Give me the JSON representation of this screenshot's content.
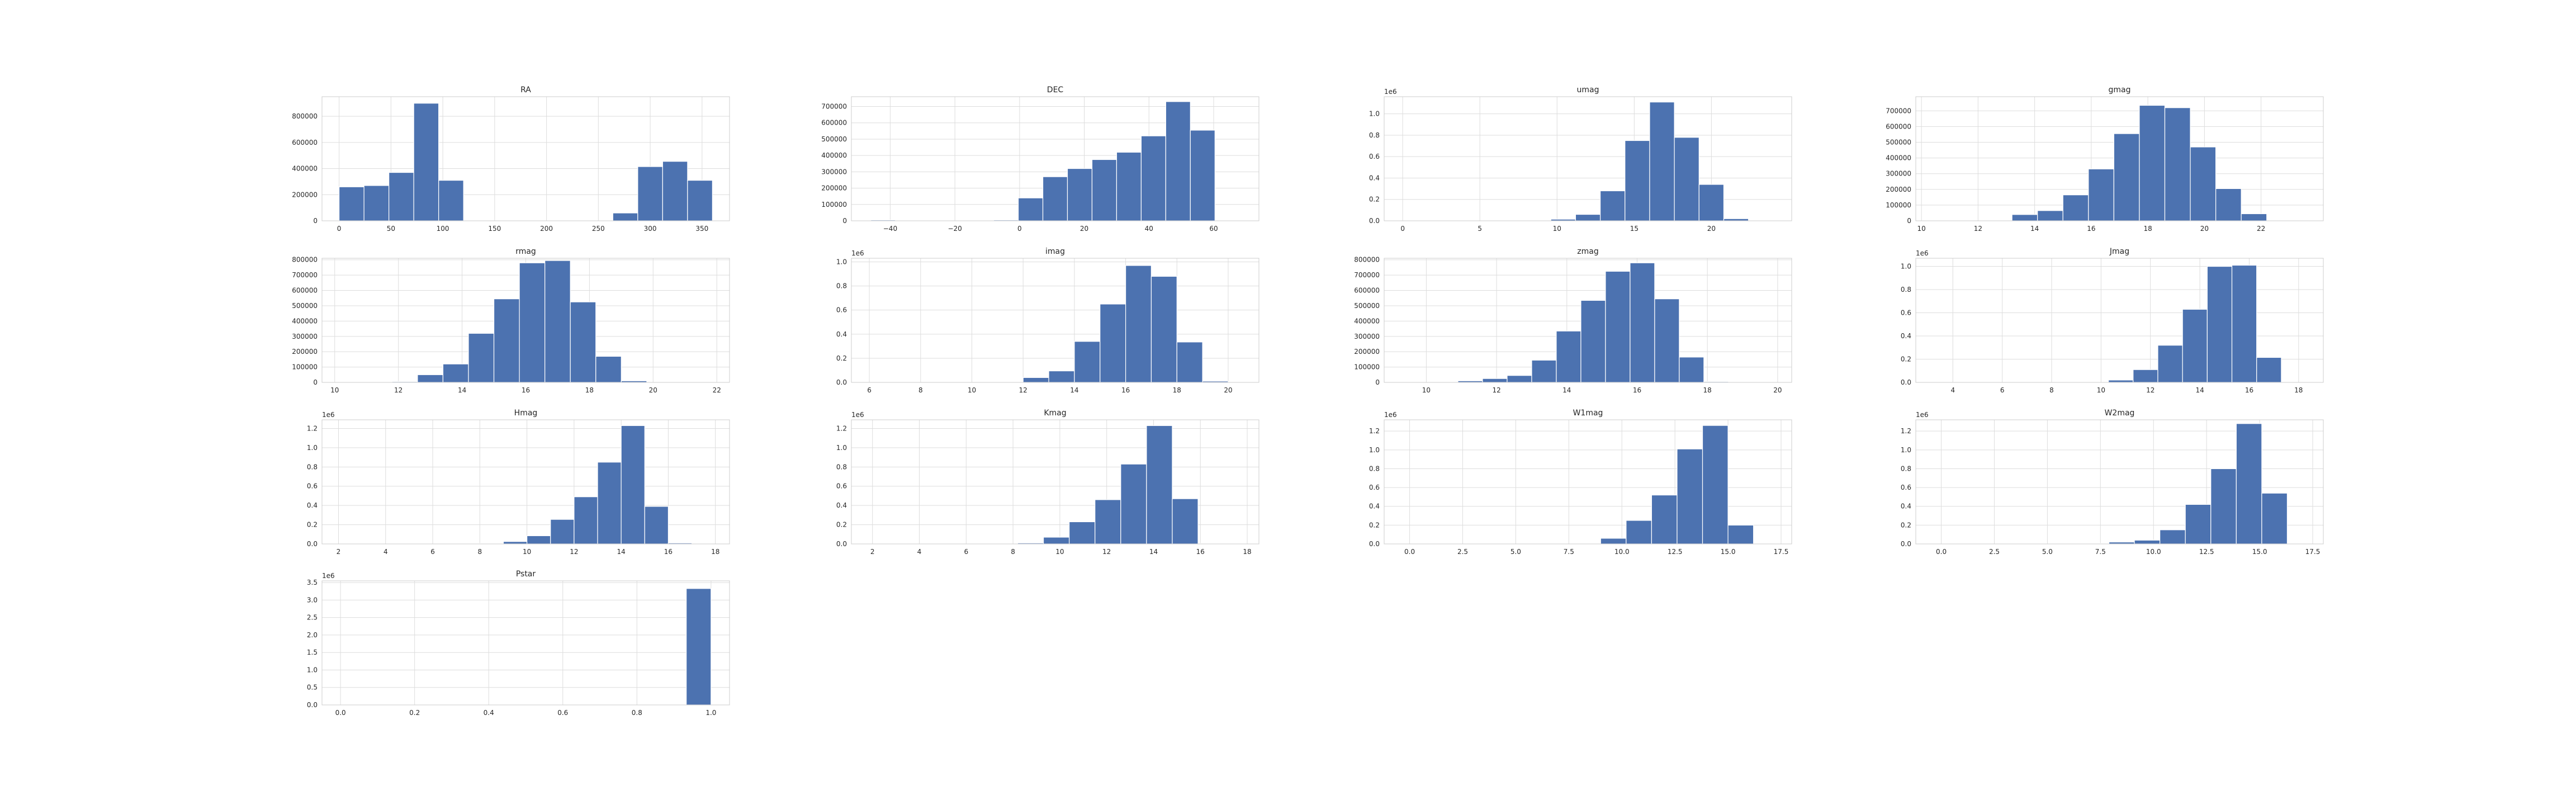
{
  "figure": {
    "background": "#ffffff"
  },
  "style": {
    "bar_color": "#4c72b0",
    "bar_edge": "#ffffff",
    "grid_color": "#dddddd",
    "axes_face": "#ffffff",
    "spine_color": "#cccccc"
  },
  "chart_data": [
    {
      "type": "bar",
      "title": "RA",
      "xlim": [
        -16.5,
        376.5
      ],
      "ylim": [
        0,
        950000
      ],
      "xticks": [
        0,
        50,
        100,
        150,
        200,
        250,
        300,
        350
      ],
      "xtick_labels": [
        "0",
        "50",
        "100",
        "150",
        "200",
        "250",
        "300",
        "350"
      ],
      "yticks": [
        0,
        200000,
        400000,
        600000,
        800000
      ],
      "ytick_labels": [
        "0",
        "200000",
        "400000",
        "600000",
        "800000"
      ],
      "offset_label": "",
      "bin_edges": [
        0,
        24,
        48,
        72,
        96,
        120,
        144,
        168,
        192,
        216,
        240,
        264,
        288,
        312,
        336,
        360
      ],
      "values": [
        260000,
        270000,
        370000,
        900000,
        310000,
        0,
        0,
        0,
        0,
        0,
        0,
        60000,
        415000,
        455000,
        310000
      ]
    },
    {
      "type": "bar",
      "title": "DEC",
      "xlim": [
        -52,
        74
      ],
      "ylim": [
        0,
        760000
      ],
      "xticks": [
        -40,
        -20,
        0,
        20,
        40,
        60
      ],
      "xtick_labels": [
        "−40",
        "−20",
        "0",
        "20",
        "40",
        "60"
      ],
      "yticks": [
        0,
        100000,
        200000,
        300000,
        400000,
        500000,
        600000,
        700000
      ],
      "ytick_labels": [
        "0",
        "100000",
        "200000",
        "300000",
        "400000",
        "500000",
        "600000",
        "700000"
      ],
      "offset_label": "",
      "bin_edges": [
        -46,
        -38.4,
        -30.8,
        -23.2,
        -15.6,
        -8,
        -0.4,
        7.2,
        14.8,
        22.4,
        30,
        37.6,
        45.2,
        52.8,
        60.4,
        68
      ],
      "values": [
        5000,
        0,
        0,
        0,
        0,
        5000,
        140000,
        270000,
        320000,
        375000,
        420000,
        520000,
        730000,
        555000,
        0
      ]
    },
    {
      "type": "bar",
      "title": "umag",
      "xlim": [
        -1.2,
        25.2
      ],
      "ylim": [
        0,
        1.16
      ],
      "xticks": [
        0,
        5,
        10,
        15,
        20
      ],
      "xtick_labels": [
        "0",
        "5",
        "10",
        "15",
        "20"
      ],
      "yticks": [
        0,
        0.2,
        0.4,
        0.6,
        0.8,
        1.0
      ],
      "ytick_labels": [
        "0.0",
        "0.2",
        "0.4",
        "0.6",
        "0.8",
        "1.0"
      ],
      "offset_label": "1e6",
      "bin_edges": [
        0,
        1.6,
        3.2,
        4.8,
        6.4,
        8,
        9.6,
        11.2,
        12.8,
        14.4,
        16,
        17.6,
        19.2,
        20.8,
        22.4,
        24
      ],
      "values": [
        0,
        0,
        0,
        0,
        0,
        0,
        0.015,
        0.06,
        0.28,
        0.75,
        1.11,
        0.78,
        0.34,
        0.02,
        0
      ]
    },
    {
      "type": "bar",
      "title": "gmag",
      "xlim": [
        9.8,
        24.2
      ],
      "ylim": [
        0,
        790000
      ],
      "xticks": [
        10,
        12,
        14,
        16,
        18,
        20,
        22
      ],
      "xtick_labels": [
        "10",
        "12",
        "14",
        "16",
        "18",
        "20",
        "22"
      ],
      "yticks": [
        0,
        100000,
        200000,
        300000,
        400000,
        500000,
        600000,
        700000
      ],
      "ytick_labels": [
        "0",
        "100000",
        "200000",
        "300000",
        "400000",
        "500000",
        "600000",
        "700000"
      ],
      "offset_label": "",
      "bin_edges": [
        10.5,
        11.4,
        12.3,
        13.2,
        14.1,
        15,
        15.9,
        16.8,
        17.7,
        18.6,
        19.5,
        20.4,
        21.3,
        22.2,
        23.1,
        24
      ],
      "values": [
        0,
        0,
        0,
        40000,
        65000,
        165000,
        330000,
        555000,
        735000,
        720000,
        470000,
        205000,
        45000,
        0,
        0
      ]
    },
    {
      "type": "bar",
      "title": "rmag",
      "xlim": [
        9.6,
        22.4
      ],
      "ylim": [
        0,
        810000
      ],
      "xticks": [
        10,
        12,
        14,
        16,
        18,
        20,
        22
      ],
      "xtick_labels": [
        "10",
        "12",
        "14",
        "16",
        "18",
        "20",
        "22"
      ],
      "yticks": [
        0,
        100000,
        200000,
        300000,
        400000,
        500000,
        600000,
        700000,
        800000
      ],
      "ytick_labels": [
        "0",
        "100000",
        "200000",
        "300000",
        "400000",
        "500000",
        "600000",
        "700000",
        "800000"
      ],
      "offset_label": "",
      "bin_edges": [
        10.2,
        11.0,
        11.8,
        12.6,
        13.4,
        14.2,
        15.0,
        15.8,
        16.6,
        17.4,
        18.2,
        19.0,
        19.8,
        20.6,
        21.4,
        22.2
      ],
      "values": [
        0,
        0,
        5000,
        50000,
        120000,
        320000,
        545000,
        780000,
        795000,
        525000,
        170000,
        10000,
        0,
        0,
        0
      ]
    },
    {
      "type": "bar",
      "title": "imag",
      "xlim": [
        5.3,
        21.2
      ],
      "ylim": [
        0,
        1.03
      ],
      "xticks": [
        6,
        8,
        10,
        12,
        14,
        16,
        18,
        20
      ],
      "xtick_labels": [
        "6",
        "8",
        "10",
        "12",
        "14",
        "16",
        "18",
        "20"
      ],
      "yticks": [
        0,
        0.2,
        0.4,
        0.6,
        0.8,
        1.0
      ],
      "ytick_labels": [
        "0.0",
        "0.2",
        "0.4",
        "0.6",
        "0.8",
        "1.0"
      ],
      "offset_label": "1e6",
      "bin_edges": [
        6.0,
        7.0,
        8.0,
        9.0,
        10.0,
        11.0,
        12.0,
        13.0,
        14.0,
        15.0,
        16.0,
        17.0,
        18.0,
        19.0,
        20.0,
        21.0
      ],
      "values": [
        0,
        0,
        0,
        0,
        0,
        0.005,
        0.04,
        0.095,
        0.34,
        0.65,
        0.97,
        0.88,
        0.335,
        0.01,
        0
      ]
    },
    {
      "type": "bar",
      "title": "zmag",
      "xlim": [
        8.8,
        20.4
      ],
      "ylim": [
        0,
        810000
      ],
      "xticks": [
        10,
        12,
        14,
        16,
        18,
        20
      ],
      "xtick_labels": [
        "10",
        "12",
        "14",
        "16",
        "18",
        "20"
      ],
      "yticks": [
        0,
        100000,
        200000,
        300000,
        400000,
        500000,
        600000,
        700000,
        800000
      ],
      "ytick_labels": [
        "0",
        "100000",
        "200000",
        "300000",
        "400000",
        "500000",
        "600000",
        "700000",
        "800000"
      ],
      "offset_label": "",
      "bin_edges": [
        10.2,
        10.9,
        11.6,
        12.3,
        13.0,
        13.7,
        14.4,
        15.1,
        15.8,
        16.5,
        17.2,
        17.9,
        18.6,
        19.3,
        20.0
      ],
      "values": [
        0,
        10000,
        25000,
        45000,
        145000,
        335000,
        535000,
        725000,
        780000,
        545000,
        165000,
        5000,
        0,
        0
      ]
    },
    {
      "type": "bar",
      "title": "Jmag",
      "xlim": [
        2.5,
        19.0
      ],
      "ylim": [
        0,
        1.07
      ],
      "xticks": [
        4,
        6,
        8,
        10,
        12,
        14,
        16,
        18
      ],
      "xtick_labels": [
        "4",
        "6",
        "8",
        "10",
        "12",
        "14",
        "16",
        "18"
      ],
      "yticks": [
        0,
        0.2,
        0.4,
        0.6,
        0.8,
        1.0
      ],
      "ytick_labels": [
        "0.0",
        "0.2",
        "0.4",
        "0.6",
        "0.8",
        "1.0"
      ],
      "offset_label": "1e6",
      "bin_edges": [
        3.3,
        4.3,
        5.3,
        6.3,
        7.3,
        8.3,
        9.3,
        10.3,
        11.3,
        12.3,
        13.3,
        14.3,
        15.3,
        16.3,
        17.3,
        18.3
      ],
      "values": [
        0,
        0,
        0,
        0,
        0,
        0,
        0,
        0.02,
        0.11,
        0.32,
        0.63,
        1.0,
        1.01,
        0.215,
        0
      ]
    },
    {
      "type": "bar",
      "title": "Hmag",
      "xlim": [
        1.3,
        18.6
      ],
      "ylim": [
        0,
        1.29
      ],
      "xticks": [
        2,
        4,
        6,
        8,
        10,
        12,
        14,
        16,
        18
      ],
      "xtick_labels": [
        "2",
        "4",
        "6",
        "8",
        "10",
        "12",
        "14",
        "16",
        "18"
      ],
      "yticks": [
        0,
        0.2,
        0.4,
        0.6,
        0.8,
        1.0,
        1.2
      ],
      "ytick_labels": [
        "0.0",
        "0.2",
        "0.4",
        "0.6",
        "0.8",
        "1.0",
        "1.2"
      ],
      "offset_label": "1e6",
      "bin_edges": [
        2.0,
        3.0,
        4.0,
        5.0,
        6.0,
        7.0,
        8.0,
        9.0,
        10.0,
        11.0,
        12.0,
        13.0,
        14.0,
        15.0,
        16.0,
        17.0
      ],
      "values": [
        0,
        0,
        0,
        0,
        0,
        0,
        0.005,
        0.025,
        0.085,
        0.255,
        0.49,
        0.85,
        1.23,
        0.39,
        0.01
      ]
    },
    {
      "type": "bar",
      "title": "Kmag",
      "xlim": [
        1.1,
        18.5
      ],
      "ylim": [
        0,
        1.29
      ],
      "xticks": [
        2,
        4,
        6,
        8,
        10,
        12,
        14,
        16,
        18
      ],
      "xtick_labels": [
        "2",
        "4",
        "6",
        "8",
        "10",
        "12",
        "14",
        "16",
        "18"
      ],
      "yticks": [
        0,
        0.2,
        0.4,
        0.6,
        0.8,
        1.0,
        1.2
      ],
      "ytick_labels": [
        "0.0",
        "0.2",
        "0.4",
        "0.6",
        "0.8",
        "1.0",
        "1.2"
      ],
      "offset_label": "1e6",
      "bin_edges": [
        1.6,
        2.7,
        3.8,
        4.9,
        6.0,
        7.1,
        8.2,
        9.3,
        10.4,
        11.5,
        12.6,
        13.7,
        14.8,
        15.9,
        17.0
      ],
      "values": [
        0,
        0,
        0,
        0,
        0,
        0.0,
        0.01,
        0.07,
        0.23,
        0.46,
        0.83,
        1.23,
        0.47,
        0.005
      ]
    },
    {
      "type": "bar",
      "title": "W1mag",
      "xlim": [
        -1.2,
        18.0
      ],
      "ylim": [
        0,
        1.32
      ],
      "xticks": [
        0,
        2.5,
        5,
        7.5,
        10,
        12.5,
        15,
        17.5
      ],
      "xtick_labels": [
        "0.0",
        "2.5",
        "5.0",
        "7.5",
        "10.0",
        "12.5",
        "15.0",
        "17.5"
      ],
      "yticks": [
        0,
        0.2,
        0.4,
        0.6,
        0.8,
        1.0,
        1.2
      ],
      "ytick_labels": [
        "0.0",
        "0.2",
        "0.4",
        "0.6",
        "0.8",
        "1.0",
        "1.2"
      ],
      "offset_label": "1e6",
      "bin_edges": [
        -0.6,
        0.6,
        1.8,
        3.0,
        4.2,
        5.4,
        6.6,
        7.8,
        9.0,
        10.2,
        11.4,
        12.6,
        13.8,
        15.0,
        16.2
      ],
      "values": [
        0,
        0,
        0,
        0,
        0,
        0,
        0.0,
        0.005,
        0.06,
        0.25,
        0.52,
        1.01,
        1.26,
        0.2
      ]
    },
    {
      "type": "bar",
      "title": "W2mag",
      "xlim": [
        -1.2,
        18.0
      ],
      "ylim": [
        0,
        1.32
      ],
      "xticks": [
        0,
        2.5,
        5,
        7.5,
        10,
        12.5,
        15,
        17.5
      ],
      "xtick_labels": [
        "0.0",
        "2.5",
        "5.0",
        "7.5",
        "10.0",
        "12.5",
        "15.0",
        "17.5"
      ],
      "yticks": [
        0,
        0.2,
        0.4,
        0.6,
        0.8,
        1.0,
        1.2
      ],
      "ytick_labels": [
        "0.0",
        "0.2",
        "0.4",
        "0.6",
        "0.8",
        "1.0",
        "1.2"
      ],
      "offset_label": "1e6",
      "bin_edges": [
        -0.5,
        0.7,
        1.9,
        3.1,
        4.3,
        5.5,
        6.7,
        7.9,
        9.1,
        10.3,
        11.5,
        12.7,
        13.9,
        15.1,
        16.3
      ],
      "values": [
        0,
        0,
        0,
        0,
        0,
        0,
        0.005,
        0.02,
        0.04,
        0.15,
        0.42,
        0.8,
        1.28,
        0.54,
        0.025
      ]
    },
    {
      "type": "bar",
      "title": "Pstar",
      "xlim": [
        -0.05,
        1.05
      ],
      "ylim": [
        0,
        3.55
      ],
      "xticks": [
        0,
        0.2,
        0.4,
        0.6,
        0.8,
        1.0
      ],
      "xtick_labels": [
        "0.0",
        "0.2",
        "0.4",
        "0.6",
        "0.8",
        "1.0"
      ],
      "yticks": [
        0,
        0.5,
        1.0,
        1.5,
        2.0,
        2.5,
        3.0,
        3.5
      ],
      "ytick_labels": [
        "0.0",
        "0.5",
        "1.0",
        "1.5",
        "2.0",
        "2.5",
        "3.0",
        "3.5"
      ],
      "offset_label": "1e6",
      "bin_edges": [
        0,
        0.0667,
        0.1333,
        0.2,
        0.2667,
        0.3333,
        0.4,
        0.4667,
        0.5333,
        0.6,
        0.6667,
        0.7333,
        0.8,
        0.8667,
        0.9333,
        1.0
      ],
      "values": [
        0,
        0,
        0,
        0,
        0,
        0,
        0,
        0,
        0,
        0,
        0,
        0,
        0,
        0,
        3.33
      ]
    }
  ]
}
